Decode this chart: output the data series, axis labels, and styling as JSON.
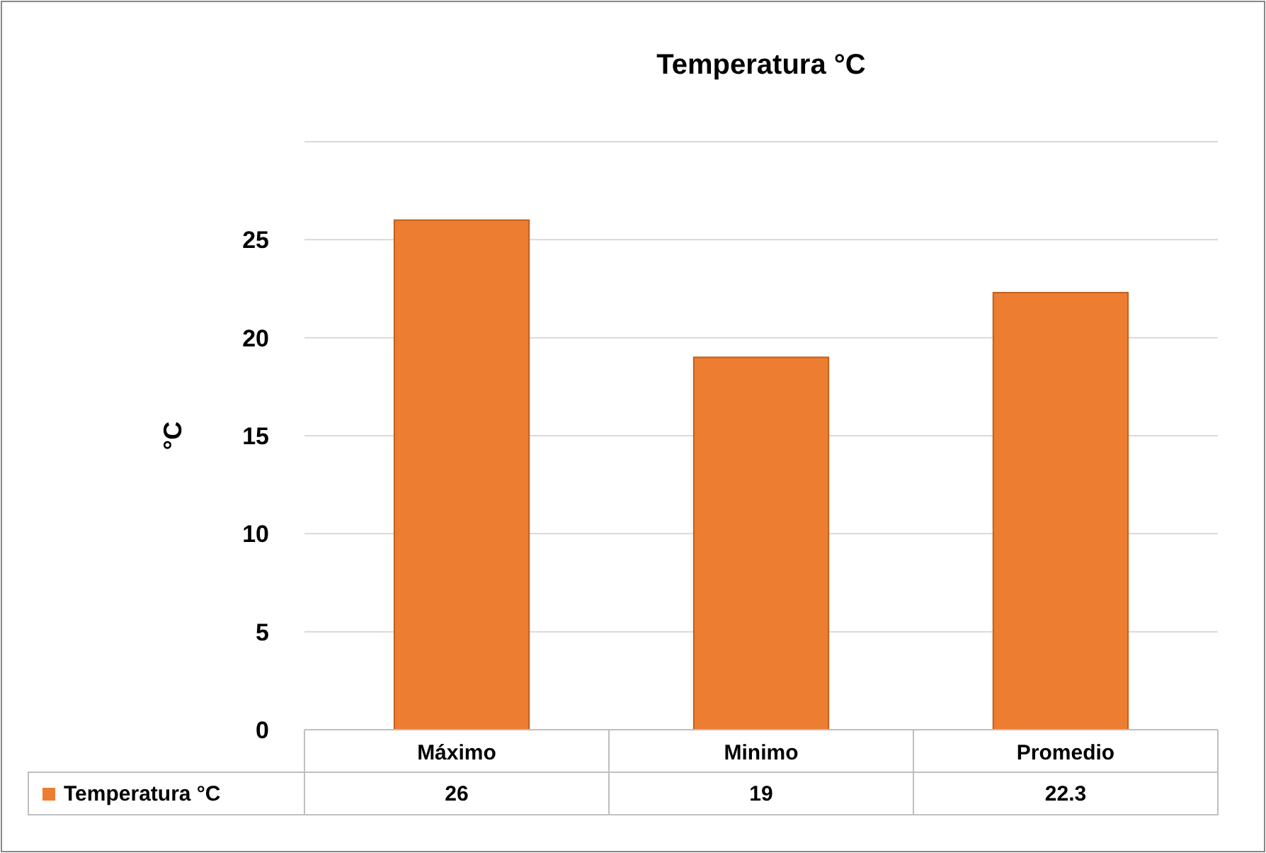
{
  "chart_data": {
    "type": "bar",
    "title": "Temperatura °C",
    "ylabel": "°C",
    "categories": [
      "Máximo",
      "Minimo",
      "Promedio"
    ],
    "series": [
      {
        "name": "Temperatura °C",
        "color": "#ed7d31",
        "values": [
          26,
          19,
          22.3
        ]
      }
    ],
    "ylim": [
      0,
      30
    ],
    "yticks": [
      0,
      5,
      10,
      15,
      20,
      25,
      {
        "value": 30,
        "label": null
      }
    ],
    "grid": "y",
    "legend": "bottom",
    "data_labels": true
  }
}
